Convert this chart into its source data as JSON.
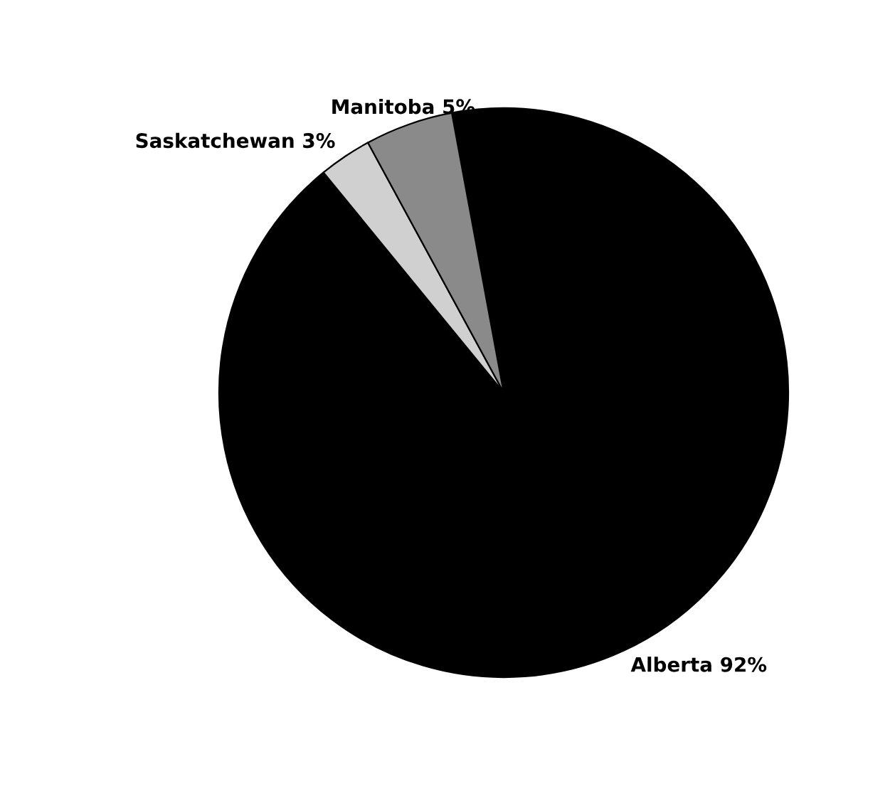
{
  "chart_data": {
    "type": "pie",
    "categories": [
      "Alberta",
      "Saskatchewan",
      "Manitoba"
    ],
    "values": [
      92,
      3,
      5
    ],
    "value_labels": [
      "92%",
      "3%",
      "5%"
    ],
    "colors": [
      "#000000",
      "#d0d0d0",
      "#8a8a8a"
    ]
  }
}
